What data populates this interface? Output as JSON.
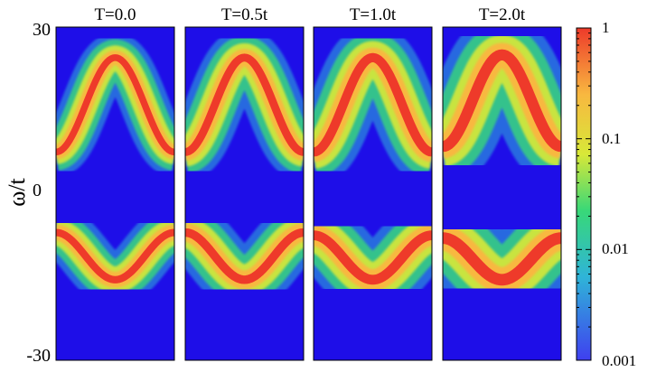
{
  "chart_data": {
    "type": "heatmap",
    "ylabel": "ω/t",
    "ylim": [
      -30,
      30
    ],
    "yticks": [
      "30",
      "0",
      "-30"
    ],
    "colorscale": {
      "scale": "log",
      "range": [
        0.001,
        1
      ],
      "tick_labels": [
        "1",
        "0.1",
        "0.01",
        "0.001"
      ],
      "colors": [
        "#3f3ff0",
        "#2fb4d8",
        "#38d878",
        "#d8e838",
        "#f8b840",
        "#ee3a2a"
      ]
    },
    "background_color": "#1e0ee8",
    "panels": [
      {
        "title": "T=0.0",
        "upper_band": {
          "min_omega": 7.5,
          "max_omega": 24.5,
          "halfwidth": 2.2
        },
        "lower_band": {
          "min_omega": -15.5,
          "max_omega": -7.0,
          "halfwidth": 2.4
        }
      },
      {
        "title": "T=0.5t",
        "upper_band": {
          "min_omega": 7.5,
          "max_omega": 24.5,
          "halfwidth": 2.6
        },
        "lower_band": {
          "min_omega": -15.5,
          "max_omega": -7.0,
          "halfwidth": 2.8
        }
      },
      {
        "title": "T=1.0t",
        "upper_band": {
          "min_omega": 7.5,
          "max_omega": 24.5,
          "halfwidth": 3.0
        },
        "lower_band": {
          "min_omega": -15.5,
          "max_omega": -7.5,
          "halfwidth": 3.2
        }
      },
      {
        "title": "T=2.0t",
        "upper_band": {
          "min_omega": 8.5,
          "max_omega": 25.0,
          "halfwidth": 3.6
        },
        "lower_band": {
          "min_omega": -15.5,
          "max_omega": -8.0,
          "halfwidth": 3.8
        }
      }
    ]
  }
}
